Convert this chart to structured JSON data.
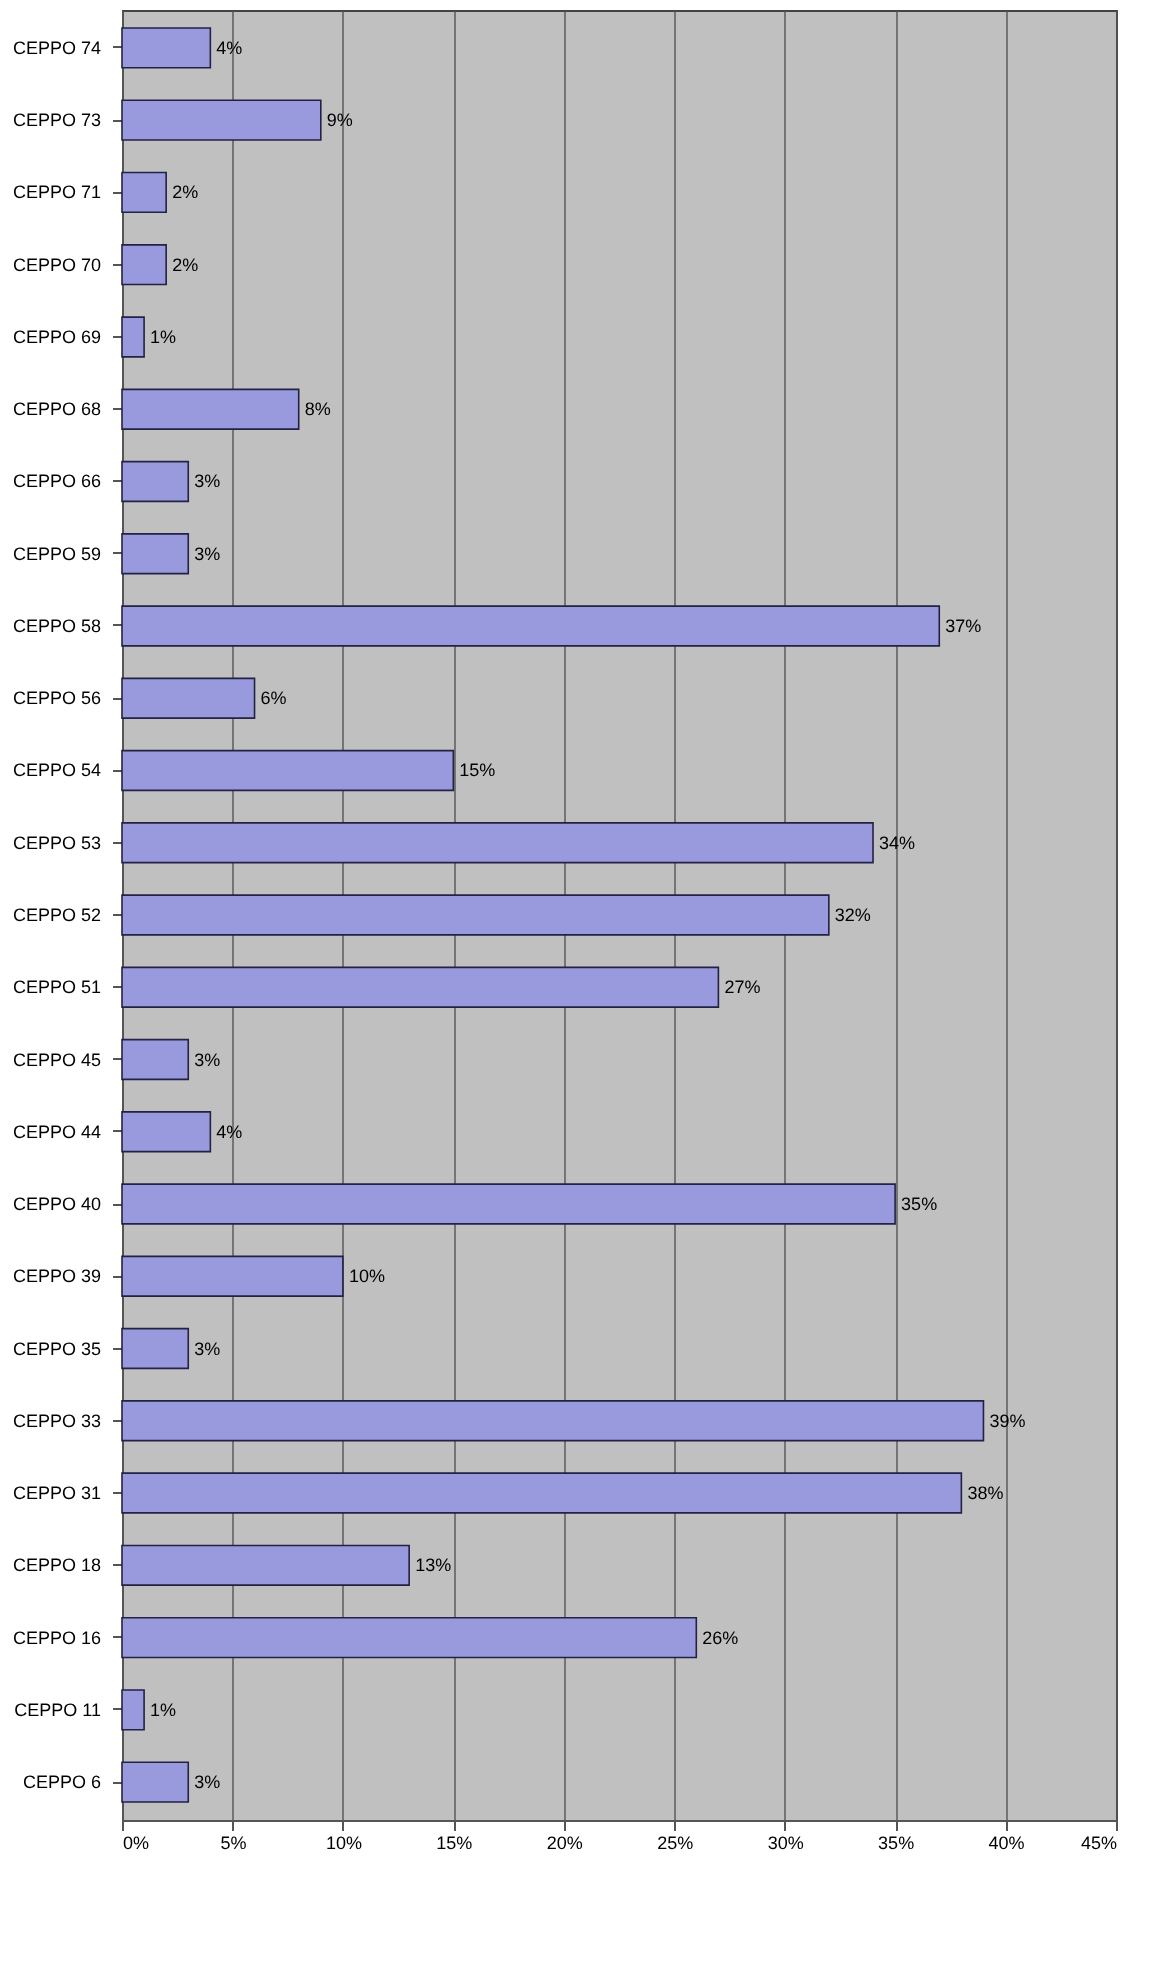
{
  "chart_data": {
    "type": "bar",
    "orientation": "horizontal",
    "categories": [
      "CEPPO 74",
      "CEPPO 73",
      "CEPPO 71",
      "CEPPO 70",
      "CEPPO 69",
      "CEPPO 68",
      "CEPPO 66",
      "CEPPO 59",
      "CEPPO 58",
      "CEPPO 56",
      "CEPPO 54",
      "CEPPO 53",
      "CEPPO 52",
      "CEPPO 51",
      "CEPPO 45",
      "CEPPO 44",
      "CEPPO 40",
      "CEPPO 39",
      "CEPPO 35",
      "CEPPO 33",
      "CEPPO 31",
      "CEPPO 18",
      "CEPPO 16",
      "CEPPO 11",
      "CEPPO 6"
    ],
    "values": [
      4,
      9,
      2,
      2,
      1,
      8,
      3,
      3,
      37,
      6,
      15,
      34,
      32,
      27,
      3,
      4,
      35,
      10,
      3,
      39,
      38,
      13,
      26,
      1,
      3
    ],
    "value_labels": [
      "4%",
      "9%",
      "2%",
      "2%",
      "1%",
      "8%",
      "3%",
      "3%",
      "37%",
      "6%",
      "15%",
      "34%",
      "32%",
      "27%",
      "3%",
      "4%",
      "35%",
      "10%",
      "3%",
      "39%",
      "38%",
      "13%",
      "26%",
      "1%",
      "3%"
    ],
    "color": "#9999dd",
    "xlim": [
      0,
      45
    ],
    "xticks": [
      {
        "value": 0,
        "label": "0%"
      },
      {
        "value": 5,
        "label": "5%"
      },
      {
        "value": 10,
        "label": "10%"
      },
      {
        "value": 15,
        "label": "15%"
      },
      {
        "value": 20,
        "label": "20%"
      },
      {
        "value": 25,
        "label": "25%"
      },
      {
        "value": 30,
        "label": "30%"
      },
      {
        "value": 35,
        "label": "35%"
      },
      {
        "value": 40,
        "label": "40%"
      },
      {
        "value": 45,
        "label": "45%"
      }
    ],
    "grid": "x"
  }
}
